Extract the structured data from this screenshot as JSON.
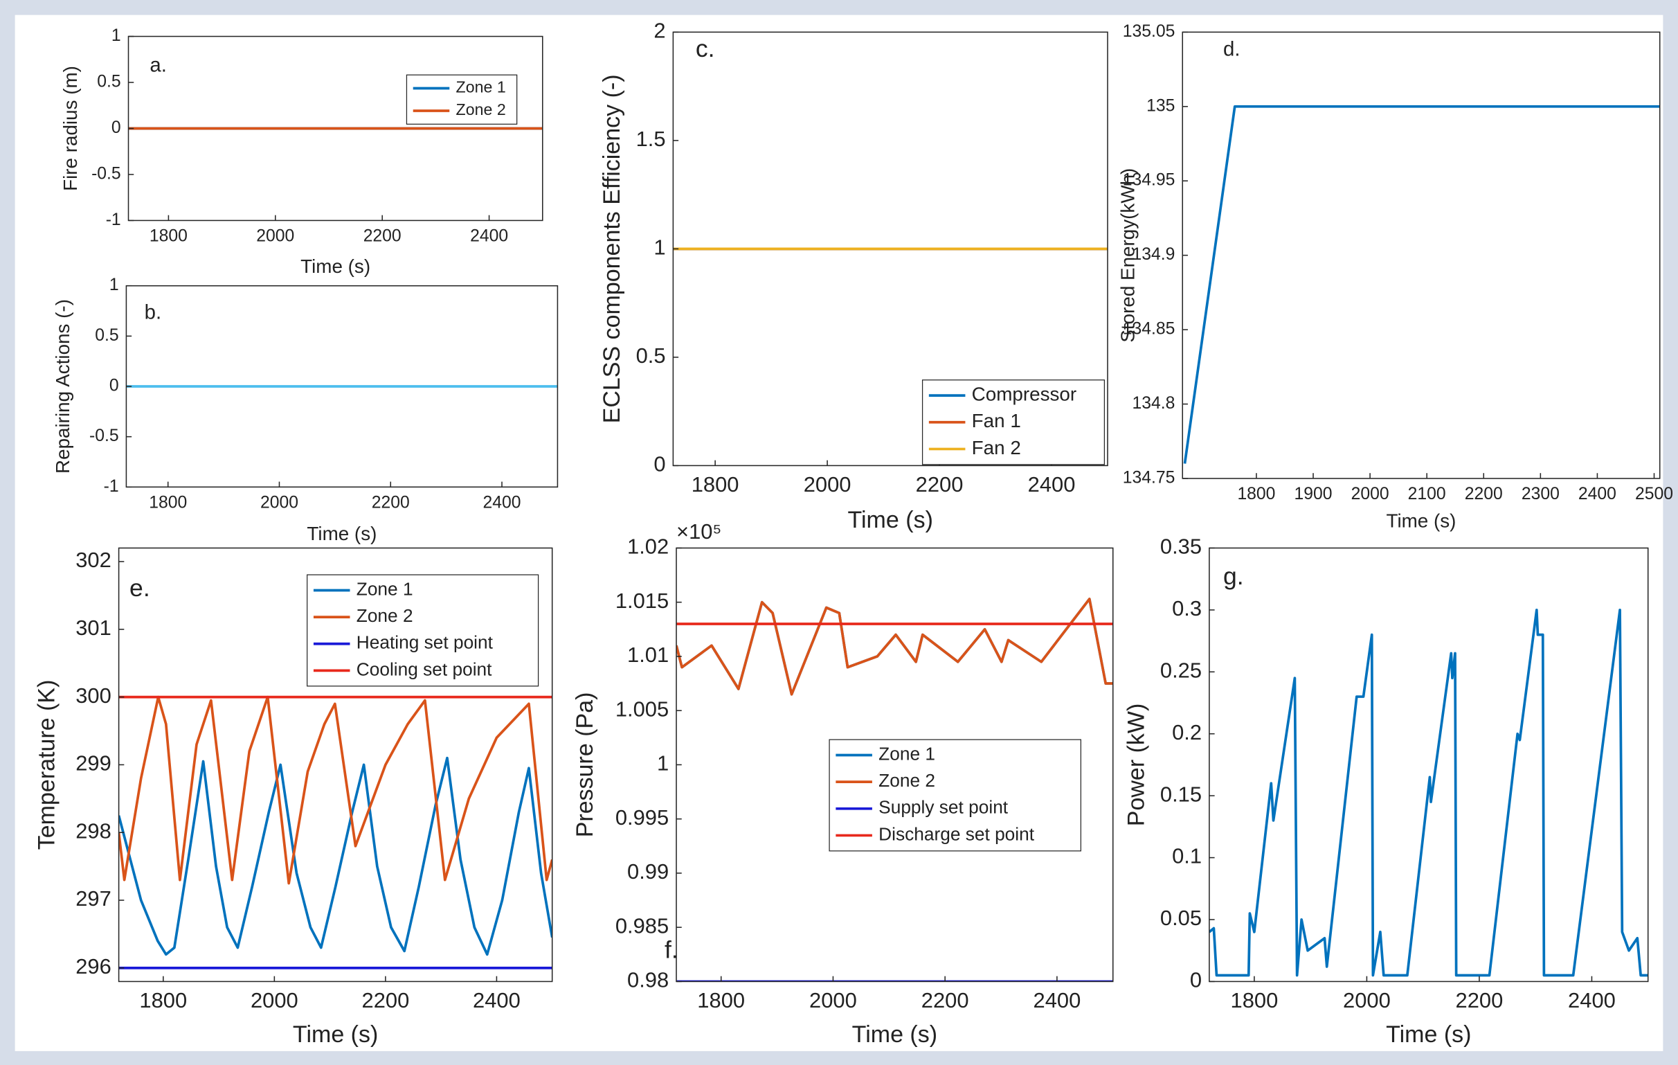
{
  "chart_data": [
    {
      "type": "line",
      "label": "a.",
      "xlabel": "Time (s)",
      "ylabel": "Fire radius (m)",
      "xlim": [
        1725,
        2500
      ],
      "xticks": [
        1800,
        2000,
        2200,
        2400
      ],
      "ylim": [
        -1,
        1
      ],
      "yticks": [
        -1,
        -0.5,
        0,
        0.5,
        1
      ],
      "series": [
        {
          "name": "Zone 1",
          "color": "#0072BD",
          "x": [
            1725,
            2500
          ],
          "values": [
            0,
            0
          ]
        },
        {
          "name": "Zone 2",
          "color": "#D95319",
          "x": [
            1725,
            2500
          ],
          "values": [
            0,
            0
          ]
        }
      ]
    },
    {
      "type": "line",
      "label": "b.",
      "xlabel": "Time (s)",
      "ylabel": "Repairing Actions (-)",
      "xlim": [
        1725,
        2500
      ],
      "xticks": [
        1800,
        2000,
        2200,
        2400
      ],
      "ylim": [
        -1,
        1
      ],
      "yticks": [
        -1,
        -0.5,
        0,
        0.5,
        1
      ],
      "series": [
        {
          "color": "#4DBEEE",
          "x": [
            1725,
            2500
          ],
          "values": [
            0,
            0
          ]
        }
      ]
    },
    {
      "type": "line",
      "label": "c.",
      "xlabel": "Time (s)",
      "ylabel": "ECLSS components Efficiency (-)",
      "xlim": [
        1725,
        2500
      ],
      "xticks": [
        1800,
        2000,
        2200,
        2400
      ],
      "ylim": [
        0,
        2
      ],
      "yticks": [
        0,
        0.5,
        1,
        1.5,
        2
      ],
      "series": [
        {
          "name": "Compressor",
          "color": "#0072BD",
          "x": [
            1725,
            2500
          ],
          "values": [
            1,
            1
          ]
        },
        {
          "name": "Fan 1",
          "color": "#D95319",
          "x": [
            1725,
            2500
          ],
          "values": [
            1,
            1
          ]
        },
        {
          "name": "Fan 2",
          "color": "#EDB120",
          "x": [
            1725,
            2500
          ],
          "values": [
            1,
            1
          ]
        }
      ]
    },
    {
      "type": "line",
      "label": "d.",
      "xlabel": "Time (s)",
      "ylabel": "Stored Energy(kWh)",
      "xlim": [
        1670,
        2510
      ],
      "xticks": [
        1800,
        1900,
        2000,
        2100,
        2200,
        2300,
        2400,
        2500
      ],
      "ylim": [
        134.75,
        135.05
      ],
      "yticks": [
        134.75,
        134.8,
        134.85,
        134.9,
        134.95,
        135,
        135.05
      ],
      "series": [
        {
          "color": "#0072BD",
          "x": [
            1674,
            1762,
            2510
          ],
          "values": [
            134.76,
            135,
            135
          ]
        }
      ]
    },
    {
      "type": "line",
      "label": "e.",
      "xlabel": "Time (s)",
      "ylabel": "Temperature (K)",
      "xlim": [
        1720,
        2500
      ],
      "xticks": [
        1800,
        2000,
        2200,
        2400
      ],
      "ylim": [
        295.8,
        302.2
      ],
      "yticks": [
        296,
        297,
        298,
        299,
        300,
        301,
        302
      ],
      "series": [
        {
          "name": "Zone 1",
          "color": "#0072BD",
          "x": [
            1720,
            1760,
            1790,
            1805,
            1820,
            1845,
            1872,
            1895,
            1915,
            1934,
            1960,
            1990,
            2011,
            2040,
            2065,
            2084,
            2110,
            2140,
            2161,
            2185,
            2210,
            2234,
            2260,
            2290,
            2311,
            2335,
            2360,
            2383,
            2410,
            2440,
            2458,
            2480,
            2500
          ],
          "values": [
            298.25,
            297.0,
            296.4,
            296.2,
            296.3,
            297.6,
            299.05,
            297.5,
            296.6,
            296.3,
            297.2,
            298.3,
            299.0,
            297.4,
            296.6,
            296.3,
            297.2,
            298.3,
            299.0,
            297.5,
            296.6,
            296.25,
            297.2,
            298.4,
            299.1,
            297.6,
            296.6,
            296.2,
            297.0,
            298.3,
            298.95,
            297.4,
            296.45
          ]
        },
        {
          "name": "Zone 2",
          "color": "#D95319",
          "x": [
            1720,
            1730,
            1760,
            1791,
            1805,
            1830,
            1860,
            1886,
            1924,
            1955,
            1988,
            2026,
            2060,
            2090,
            2109,
            2146,
            2200,
            2240,
            2271,
            2307,
            2350,
            2400,
            2458,
            2490,
            2500
          ],
          "values": [
            298.0,
            297.3,
            298.8,
            300.0,
            299.6,
            297.3,
            299.3,
            299.95,
            297.3,
            299.2,
            300.0,
            297.25,
            298.9,
            299.6,
            299.9,
            297.8,
            299.0,
            299.6,
            299.95,
            297.3,
            298.5,
            299.4,
            299.9,
            297.3,
            297.6
          ]
        },
        {
          "name": "Heating set point",
          "color": "#1a1ad8",
          "x": [
            1720,
            2500
          ],
          "values": [
            296,
            296
          ]
        },
        {
          "name": "Cooling set point",
          "color": "#e8291c",
          "x": [
            1720,
            2500
          ],
          "values": [
            300,
            300
          ]
        }
      ]
    },
    {
      "type": "line",
      "label": "f.",
      "xlabel": "Time (s)",
      "ylabel": "Pressure (Pa)",
      "ymultiplier": "×10⁵",
      "xlim": [
        1720,
        2500
      ],
      "xticks": [
        1800,
        2000,
        2200,
        2400
      ],
      "ylim": [
        98000,
        102000
      ],
      "yticks": [
        {
          "value": 98000,
          "label": "0.98"
        },
        {
          "value": 98500,
          "label": "0.985"
        },
        {
          "value": 99000,
          "label": "0.99"
        },
        {
          "value": 99500,
          "label": "0.995"
        },
        {
          "value": 100000,
          "label": "1"
        },
        {
          "value": 100500,
          "label": "1.005"
        },
        {
          "value": 101000,
          "label": "1.01"
        },
        {
          "value": 101500,
          "label": "1.015"
        },
        {
          "value": 102000,
          "label": "1.02"
        }
      ],
      "series": [
        {
          "name": "Zone 1",
          "color": "#0072BD",
          "x": [
            1720,
            1730,
            1783,
            1831,
            1873,
            1892,
            1926,
            1988,
            2011,
            2026,
            2079,
            2112,
            2148,
            2160,
            2223,
            2271,
            2301,
            2313,
            2372,
            2458,
            2487,
            2500
          ],
          "values": [
            101100,
            100900,
            101100,
            100700,
            101500,
            101400,
            100650,
            101450,
            101400,
            100900,
            101000,
            101200,
            100950,
            101200,
            100950,
            101250,
            100950,
            101150,
            100950,
            101530,
            100750,
            100750
          ]
        },
        {
          "name": "Zone 2",
          "color": "#D95319",
          "x": [
            1720,
            1730,
            1783,
            1831,
            1873,
            1892,
            1926,
            1988,
            2011,
            2026,
            2079,
            2112,
            2148,
            2160,
            2223,
            2271,
            2301,
            2313,
            2372,
            2458,
            2487,
            2500
          ],
          "values": [
            101100,
            100900,
            101100,
            100700,
            101500,
            101400,
            100650,
            101450,
            101400,
            100900,
            101000,
            101200,
            100950,
            101200,
            100950,
            101250,
            100950,
            101150,
            100950,
            101530,
            100750,
            100750
          ]
        },
        {
          "name": "Supply set point",
          "color": "#1a1ad8",
          "x": [
            1720,
            2500
          ],
          "values": [
            98000,
            98000
          ]
        },
        {
          "name": "Discharge set point",
          "color": "#e8291c",
          "x": [
            1720,
            2500
          ],
          "values": [
            101300,
            101300
          ]
        }
      ]
    },
    {
      "type": "line",
      "label": "g.",
      "xlabel": "Time (s)",
      "ylabel": "Power (kW)",
      "xlim": [
        1720,
        2500
      ],
      "xticks": [
        1800,
        2000,
        2200,
        2400
      ],
      "ylim": [
        0,
        0.35
      ],
      "yticks": [
        0,
        0.05,
        0.1,
        0.15,
        0.2,
        0.25,
        0.3,
        0.35
      ],
      "series": [
        {
          "color": "#0072BD",
          "x": [
            1720,
            1728,
            1733,
            1790,
            1792,
            1800,
            1830,
            1834,
            1872,
            1876,
            1884,
            1895,
            1925,
            1929,
            1982,
            1994,
            2009,
            2011,
            2024,
            2030,
            2072,
            2112,
            2114,
            2150,
            2152,
            2157,
            2159,
            2218,
            2268,
            2272,
            2302,
            2304,
            2313,
            2315,
            2367,
            2450,
            2454,
            2466,
            2481,
            2487,
            2500
          ],
          "values": [
            0.04,
            0.043,
            0.005,
            0.005,
            0.055,
            0.04,
            0.16,
            0.13,
            0.245,
            0.005,
            0.05,
            0.025,
            0.035,
            0.012,
            0.23,
            0.23,
            0.28,
            0.005,
            0.04,
            0.005,
            0.005,
            0.165,
            0.145,
            0.265,
            0.245,
            0.265,
            0.005,
            0.005,
            0.2,
            0.195,
            0.3,
            0.28,
            0.28,
            0.005,
            0.005,
            0.3,
            0.04,
            0.025,
            0.035,
            0.005,
            0.005
          ]
        }
      ]
    }
  ]
}
